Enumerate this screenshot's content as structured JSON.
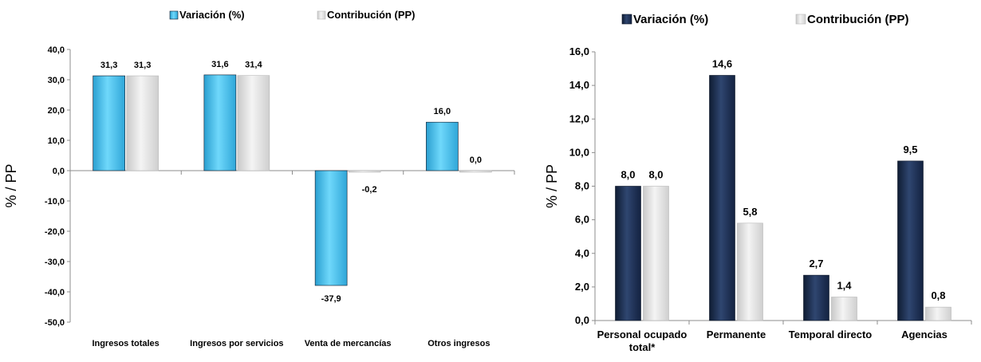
{
  "chart_data": [
    {
      "type": "bar",
      "title": "",
      "ylabel": "% / PP",
      "ylim": [
        -50,
        40
      ],
      "yticks": [
        40,
        30,
        20,
        10,
        0,
        -10,
        -20,
        -30,
        -40,
        -50
      ],
      "ytick_labels": [
        "40,0",
        "30,0",
        "20,0",
        "10,0",
        "0,0",
        "-10,0",
        "-20,0",
        "-30,0",
        "-40,0",
        "-50,0"
      ],
      "legend_position": "top",
      "categories": [
        "Ingresos totales",
        "Ingresos por servicios",
        "Venta de mercancías",
        "Otros ingresos"
      ],
      "series": [
        {
          "name": "Variación (%)",
          "color": "#4cc4f0",
          "values": [
            31.3,
            31.6,
            -37.9,
            16.0
          ],
          "labels": [
            "31,3",
            "31,6",
            "-37,9",
            "16,0"
          ]
        },
        {
          "name": "Contribución (PP)",
          "color": "#dcdcdc",
          "values": [
            31.3,
            31.4,
            -0.2,
            0.0
          ],
          "labels": [
            "31,3",
            "31,4",
            "-0,2",
            "0,0"
          ]
        }
      ]
    },
    {
      "type": "bar",
      "title": "",
      "ylabel": "% / PP",
      "ylim": [
        0,
        16
      ],
      "yticks": [
        16,
        14,
        12,
        10,
        8,
        6,
        4,
        2,
        0
      ],
      "ytick_labels": [
        "16,0",
        "14,0",
        "12,0",
        "10,0",
        "8,0",
        "6,0",
        "4,0",
        "2,0",
        "0,0"
      ],
      "legend_position": "top",
      "categories": [
        "Personal ocupado total*",
        "Permanente",
        "Temporal directo",
        "Agencias"
      ],
      "category_lines": [
        [
          "Personal ocupado",
          "total*"
        ],
        [
          "Permanente"
        ],
        [
          "Temporal directo"
        ],
        [
          "Agencias"
        ]
      ],
      "series": [
        {
          "name": "Variación (%)",
          "color": "#1a2c4a",
          "values": [
            8.0,
            14.6,
            2.7,
            9.5
          ],
          "labels": [
            "8,0",
            "14,6",
            "2,7",
            "9,5"
          ]
        },
        {
          "name": "Contribución (PP)",
          "color": "#dcdcdc",
          "values": [
            8.0,
            5.8,
            1.4,
            0.8
          ],
          "labels": [
            "8,0",
            "5,8",
            "1,4",
            "0,8"
          ]
        }
      ]
    }
  ]
}
